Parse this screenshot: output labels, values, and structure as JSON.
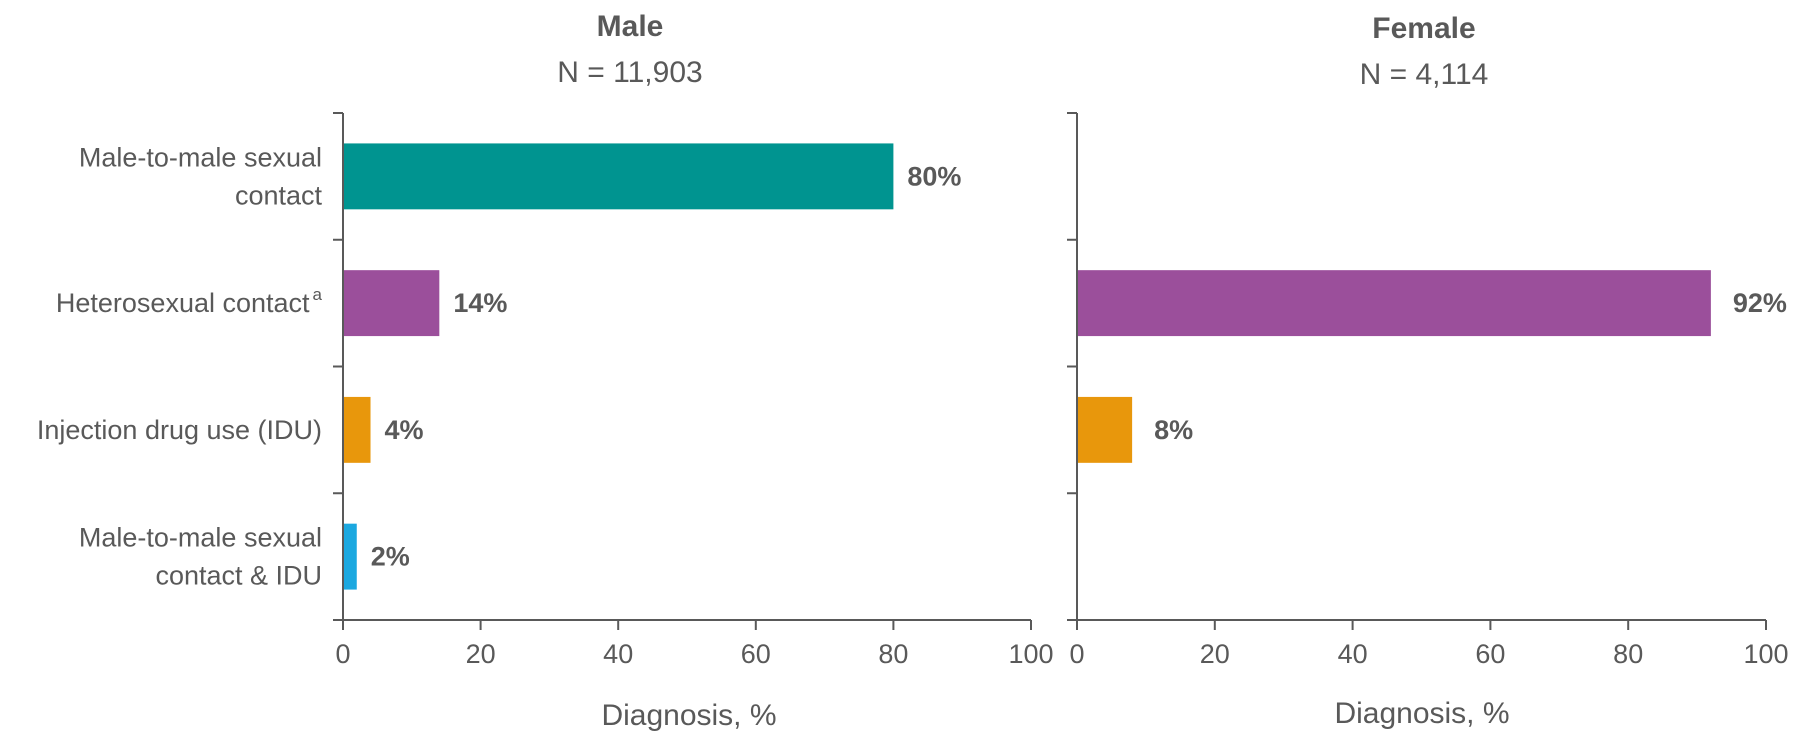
{
  "chart_data": [
    {
      "type": "bar",
      "orientation": "horizontal",
      "title": "Male",
      "subtitle": "N = 11,903",
      "xlabel": "Diagnosis, %",
      "xlim": [
        0,
        100
      ],
      "xticks": [
        "0",
        "20",
        "40",
        "60",
        "80",
        "100"
      ],
      "categories": [
        {
          "lines": [
            "Male-to-male sexual",
            "contact"
          ],
          "sup": ""
        },
        {
          "lines": [
            "Heterosexual contact"
          ],
          "sup": "a"
        },
        {
          "lines": [
            "Injection drug use (IDU)"
          ],
          "sup": ""
        },
        {
          "lines": [
            "Male-to-male sexual",
            "contact & IDU"
          ],
          "sup": ""
        }
      ],
      "values": [
        80,
        14,
        4,
        2
      ],
      "data_labels": [
        "80%",
        "14%",
        "4%",
        "2%"
      ],
      "colors": [
        "#009490",
        "#9b4f9b",
        "#e8970c",
        "#1ba8e0"
      ]
    },
    {
      "type": "bar",
      "orientation": "horizontal",
      "title": "Female",
      "subtitle": "N = 4,114",
      "xlabel": "Diagnosis, %",
      "xlim": [
        0,
        100
      ],
      "xticks": [
        "0",
        "20",
        "40",
        "60",
        "80",
        "100"
      ],
      "categories": [
        {
          "lines": [],
          "sup": ""
        },
        {
          "lines": [],
          "sup": ""
        },
        {
          "lines": [],
          "sup": ""
        },
        {
          "lines": [],
          "sup": ""
        }
      ],
      "values": [
        null,
        92,
        8,
        null
      ],
      "data_labels": [
        "",
        "92%",
        "8%",
        ""
      ],
      "colors": [
        "#009490",
        "#9b4f9b",
        "#e8970c",
        "#1ba8e0"
      ]
    }
  ]
}
